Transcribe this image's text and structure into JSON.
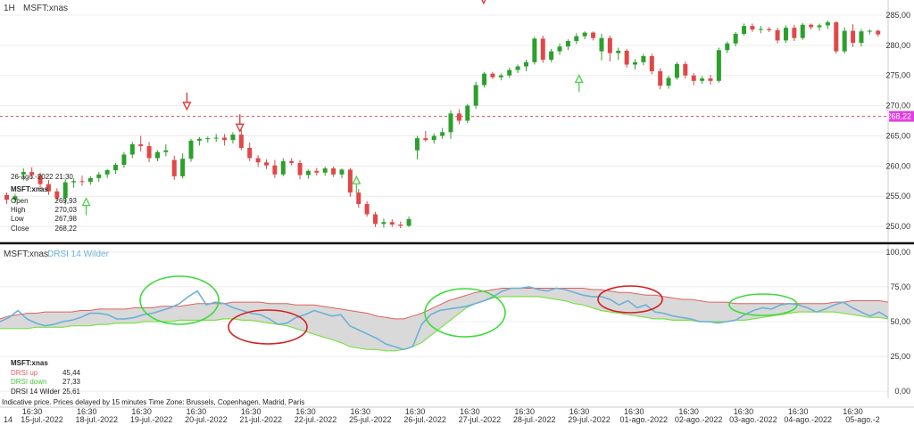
{
  "header": {
    "interval": "1H",
    "symbol": "MSFT:xnas"
  },
  "colors": {
    "up": "#2ca02c",
    "down": "#e04848",
    "drsi_line": "#6fb0d8",
    "drsi_up": "#e06060",
    "drsi_down": "#7ee04a",
    "band_fill": "#d9d9d9",
    "last_price_bg": "#e040e0",
    "signal_up": "#4ccf4c",
    "signal_down": "#e03030"
  },
  "price_panel": {
    "ylim": [
      247.5,
      287.5
    ],
    "ticks": [
      "285,00",
      "280,00",
      "275,00",
      "270,00",
      "265,00",
      "260,00",
      "255,00",
      "250,00"
    ],
    "tick_values": [
      285,
      280,
      275,
      270,
      265,
      260,
      255,
      250
    ],
    "last_price": 268.22,
    "last_price_label": "268,22"
  },
  "info_box": {
    "datetime": "26-ago.-2022 21:30",
    "symbol": "MSFT:xnas",
    "rows": [
      {
        "label": "Open",
        "value": "269,93"
      },
      {
        "label": "High",
        "value": "270,03"
      },
      {
        "label": "Low",
        "value": "267,98"
      },
      {
        "label": "Close",
        "value": "268,22"
      }
    ]
  },
  "indicator_panel": {
    "symbol": "MSFT:xnas",
    "indicator": "DRSI 14 Wilder",
    "ylim": [
      -5,
      105
    ],
    "ticks": [
      "100,00",
      "75,00",
      "50,00",
      "25,00",
      "0,00"
    ],
    "tick_values": [
      100,
      75,
      50,
      25,
      0
    ],
    "legend": {
      "symbol": "MSFT:xnas",
      "rows": [
        {
          "label": "DRSI up",
          "value": "45,44",
          "color_key": "drsi_up"
        },
        {
          "label": "DRSI down",
          "value": "27,33",
          "color_key": "drsi_down"
        },
        {
          "label": "DRSI 14 Wilder",
          "value": "25,61",
          "color_key": "text"
        }
      ]
    }
  },
  "footer_note": "Indicative price. Prices delayed by 15 minutes   Time Zone: Brussels, Copenhagen, Madrid, Paris",
  "x_axis": {
    "time_labels": [
      "16:30",
      "16:30",
      "16:30",
      "16:30",
      "16:30",
      "16:30",
      "16:30",
      "16:30",
      "16:30",
      "16:30",
      "16:30",
      "16:30",
      "16:30",
      "16:30",
      "16:30",
      "16:30"
    ],
    "date_labels": [
      "14",
      "15-jul.-2022",
      "18-jul.-2022",
      "19-jul.-2022",
      "20-jul.-2022",
      "21-jul.-2022",
      "22-jul.-2022",
      "25-jul.-2022",
      "26-jul.-2022",
      "27-jul.-2022",
      "28-jul.-2022",
      "29-jul.-2022",
      "01-ago.-2022",
      "02-ago.-2022",
      "03-ago.-2022",
      "04-ago.-2022",
      "05-ago.-2"
    ]
  },
  "chart_data": [
    {
      "type": "candlestick",
      "symbol": "MSFT:xnas",
      "interval": "1H",
      "ylim": [
        247.5,
        287.5
      ],
      "candles": [
        [
          255.2,
          255.6,
          253.7,
          254.4
        ],
        [
          254.4,
          255.4,
          253.9,
          255.0
        ],
        [
          258.6,
          259.6,
          257.6,
          259.0
        ],
        [
          259.0,
          259.8,
          257.8,
          258.5
        ],
        [
          258.5,
          258.9,
          256.2,
          257.0
        ],
        [
          257.0,
          257.7,
          255.2,
          255.8
        ],
        [
          255.8,
          256.3,
          254.2,
          254.7
        ],
        [
          254.7,
          257.8,
          253.6,
          257.3
        ],
        [
          257.3,
          258.0,
          256.4,
          257.5
        ],
        [
          257.5,
          258.4,
          256.7,
          257.4
        ],
        [
          257.4,
          258.3,
          256.9,
          258.0
        ],
        [
          258.0,
          259.0,
          257.4,
          258.6
        ],
        [
          258.6,
          259.5,
          258.0,
          259.3
        ],
        [
          259.3,
          260.5,
          258.7,
          260.2
        ],
        [
          260.2,
          262.3,
          259.7,
          261.9
        ],
        [
          261.9,
          264.0,
          261.3,
          263.6
        ],
        [
          263.6,
          265.0,
          262.4,
          263.3
        ],
        [
          263.3,
          264.0,
          260.6,
          261.3
        ],
        [
          261.3,
          262.6,
          260.8,
          262.3
        ],
        [
          262.3,
          263.6,
          261.6,
          262.6
        ],
        [
          261.0,
          261.7,
          257.7,
          258.3
        ],
        [
          258.3,
          262.1,
          257.9,
          261.2
        ],
        [
          261.2,
          264.5,
          260.7,
          264.2
        ],
        [
          264.2,
          264.8,
          263.4,
          264.5
        ],
        [
          264.5,
          264.9,
          263.9,
          264.6
        ],
        [
          264.6,
          265.3,
          264.0,
          264.7
        ],
        [
          264.7,
          265.3,
          263.4,
          264.3
        ],
        [
          264.3,
          265.6,
          263.7,
          265.2
        ],
        [
          265.2,
          266.0,
          262.6,
          263.0
        ],
        [
          263.0,
          263.9,
          260.8,
          261.3
        ],
        [
          261.3,
          261.8,
          259.9,
          260.6
        ],
        [
          260.6,
          261.1,
          259.5,
          260.1
        ],
        [
          260.1,
          261.0,
          258.0,
          258.6
        ],
        [
          258.6,
          261.3,
          258.3,
          260.8
        ],
        [
          260.8,
          261.3,
          260.1,
          260.5
        ],
        [
          260.5,
          261.0,
          257.8,
          258.5
        ],
        [
          258.5,
          259.4,
          257.9,
          259.2
        ],
        [
          259.2,
          259.7,
          258.4,
          258.9
        ],
        [
          258.9,
          259.9,
          258.4,
          259.6
        ],
        [
          259.6,
          259.9,
          258.2,
          258.6
        ],
        [
          258.6,
          259.6,
          258.0,
          259.4
        ],
        [
          259.4,
          259.7,
          254.9,
          255.6
        ],
        [
          255.6,
          256.2,
          253.1,
          253.7
        ],
        [
          253.7,
          254.2,
          251.6,
          252.0
        ],
        [
          252.0,
          252.4,
          249.9,
          250.4
        ],
        [
          250.4,
          251.3,
          249.8,
          250.7
        ],
        [
          250.7,
          251.2,
          249.9,
          250.3
        ],
        [
          250.3,
          250.8,
          249.7,
          250.1
        ],
        [
          250.1,
          251.6,
          249.9,
          251.2
        ],
        [
          262.6,
          265.0,
          261.1,
          264.6
        ],
        [
          264.6,
          265.8,
          264.0,
          264.3
        ],
        [
          264.3,
          265.4,
          263.7,
          265.0
        ],
        [
          265.0,
          266.3,
          264.5,
          265.6
        ],
        [
          265.6,
          269.2,
          264.5,
          268.7
        ],
        [
          268.7,
          269.4,
          266.9,
          267.5
        ],
        [
          267.5,
          270.3,
          267.1,
          270.0
        ],
        [
          270.0,
          273.9,
          269.5,
          273.4
        ],
        [
          273.4,
          275.6,
          273.0,
          275.3
        ],
        [
          275.3,
          275.6,
          274.4,
          274.7
        ],
        [
          274.7,
          275.3,
          274.2,
          275.0
        ],
        [
          275.0,
          276.3,
          274.6,
          275.9
        ],
        [
          275.9,
          276.8,
          275.4,
          276.5
        ],
        [
          276.5,
          277.6,
          275.7,
          277.2
        ],
        [
          277.2,
          281.4,
          276.8,
          281.1
        ],
        [
          281.1,
          281.6,
          277.1,
          277.6
        ],
        [
          277.6,
          279.4,
          277.2,
          279.0
        ],
        [
          279.0,
          280.3,
          278.4,
          279.8
        ],
        [
          279.8,
          281.0,
          279.2,
          280.7
        ],
        [
          280.7,
          282.0,
          280.2,
          281.5
        ],
        [
          281.5,
          282.3,
          281.0,
          282.1
        ],
        [
          282.1,
          282.3,
          280.8,
          281.2
        ],
        [
          279.0,
          281.9,
          277.5,
          281.2
        ],
        [
          281.2,
          281.6,
          277.3,
          278.7
        ],
        [
          278.7,
          279.6,
          277.6,
          279.1
        ],
        [
          279.1,
          279.4,
          276.3,
          276.8
        ],
        [
          276.8,
          277.7,
          276.0,
          277.2
        ],
        [
          277.2,
          278.6,
          276.7,
          278.2
        ],
        [
          278.2,
          278.6,
          275.2,
          275.7
        ],
        [
          275.7,
          276.2,
          272.7,
          273.3
        ],
        [
          273.3,
          275.0,
          272.8,
          274.6
        ],
        [
          274.6,
          277.2,
          274.3,
          276.9
        ],
        [
          276.9,
          277.3,
          274.5,
          275.0
        ],
        [
          275.0,
          275.4,
          273.4,
          274.1
        ],
        [
          274.1,
          274.9,
          273.6,
          274.5
        ],
        [
          274.5,
          275.1,
          273.5,
          274.1
        ],
        [
          274.1,
          279.6,
          273.8,
          279.2
        ],
        [
          279.2,
          280.6,
          278.7,
          280.3
        ],
        [
          280.3,
          282.2,
          279.8,
          281.9
        ],
        [
          281.9,
          283.6,
          281.6,
          283.2
        ],
        [
          283.2,
          283.6,
          282.2,
          282.6
        ],
        [
          282.6,
          283.2,
          282.0,
          282.7
        ],
        [
          282.7,
          283.0,
          282.2,
          282.5
        ],
        [
          282.5,
          282.9,
          280.3,
          280.8
        ],
        [
          280.8,
          283.3,
          280.4,
          282.9
        ],
        [
          282.9,
          283.4,
          280.7,
          281.2
        ],
        [
          281.2,
          283.7,
          280.9,
          283.4
        ],
        [
          283.4,
          283.6,
          282.6,
          283.0
        ],
        [
          283.0,
          283.6,
          282.4,
          283.3
        ],
        [
          283.3,
          284.1,
          282.7,
          283.8
        ],
        [
          283.8,
          284.0,
          278.6,
          279.0
        ],
        [
          279.0,
          283.0,
          278.6,
          282.4
        ],
        [
          282.4,
          283.5,
          279.7,
          280.4
        ],
        [
          280.4,
          282.7,
          279.8,
          282.3
        ],
        [
          282.3,
          282.6,
          281.8,
          282.4
        ],
        [
          282.4,
          282.6,
          281.4,
          281.8
        ]
      ],
      "candle_fields": [
        "open",
        "high",
        "low",
        "close"
      ],
      "last_price": 268.22,
      "signals": [
        {
          "type": "buy",
          "index": 15,
          "price": 254.2
        },
        {
          "type": "sell",
          "index": 34,
          "price": 269.8
        },
        {
          "type": "sell",
          "index": 44,
          "price": 266.2
        },
        {
          "type": "buy",
          "index": 66,
          "price": 257.8
        },
        {
          "type": "sell",
          "index": 90,
          "price": 287.4
        },
        {
          "type": "buy",
          "index": 108,
          "price": 274.6
        }
      ]
    },
    {
      "type": "line",
      "indicator": "DRSI 14 Wilder",
      "ylim": [
        -5,
        105
      ],
      "series": [
        {
          "name": "DRSI 14 Wilder",
          "color_key": "drsi_line",
          "values": [
            50,
            53,
            58,
            52,
            49,
            47,
            48,
            50,
            51,
            53,
            56,
            56,
            55,
            52,
            52,
            53,
            55,
            56,
            58,
            60,
            63,
            68,
            72,
            62,
            64,
            63,
            60,
            58,
            56,
            55,
            52,
            48,
            49,
            53,
            55,
            58,
            56,
            54,
            55,
            47,
            44,
            41,
            38,
            34,
            32,
            30,
            32,
            48,
            55,
            58,
            59,
            60,
            61,
            63,
            65,
            68,
            72,
            74,
            74,
            75,
            73,
            72,
            74,
            73,
            71,
            69,
            68,
            68,
            66,
            62,
            65,
            60,
            62,
            57,
            56,
            54,
            53,
            52,
            50,
            50,
            49,
            50,
            51,
            55,
            58,
            60,
            59,
            62,
            63,
            62,
            60,
            57,
            59,
            62,
            64,
            60,
            57,
            54,
            57,
            53
          ]
        },
        {
          "name": "DRSI up",
          "color_key": "drsi_up",
          "values": [
            52,
            54,
            55,
            56,
            56,
            57,
            57,
            57,
            57,
            58,
            58,
            59,
            59,
            59,
            59,
            60,
            60,
            60,
            61,
            61,
            61,
            62,
            63,
            63,
            63,
            63,
            64,
            64,
            64,
            64,
            63,
            63,
            63,
            62,
            62,
            62,
            61,
            60,
            59,
            58,
            57,
            56,
            54,
            53,
            52,
            52,
            54,
            56,
            59,
            62,
            65,
            67,
            69,
            71,
            72,
            73,
            74,
            74,
            74,
            74,
            74,
            74,
            74,
            74,
            74,
            74,
            73,
            73,
            72,
            71,
            71,
            70,
            69,
            69,
            68,
            67,
            66,
            66,
            65,
            64,
            64,
            64,
            63,
            63,
            63,
            63,
            63,
            63,
            63,
            63,
            63,
            63,
            63,
            64,
            64,
            65,
            65,
            65,
            65,
            64
          ]
        },
        {
          "name": "DRSI down",
          "color_key": "drsi_down",
          "values": [
            45,
            45,
            45,
            45,
            46,
            46,
            46,
            46,
            47,
            47,
            47,
            48,
            48,
            49,
            49,
            49,
            50,
            50,
            50,
            50,
            51,
            51,
            51,
            51,
            51,
            52,
            52,
            51,
            51,
            50,
            49,
            48,
            47,
            45,
            43,
            41,
            39,
            37,
            35,
            32,
            31,
            30,
            30,
            29,
            29,
            30,
            32,
            35,
            40,
            45,
            50,
            55,
            60,
            63,
            65,
            67,
            68,
            68,
            68,
            68,
            68,
            67,
            66,
            65,
            63,
            62,
            60,
            58,
            57,
            56,
            55,
            54,
            53,
            52,
            52,
            51,
            51,
            51,
            50,
            50,
            50,
            50,
            51,
            51,
            52,
            53,
            54,
            55,
            56,
            57,
            57,
            57,
            57,
            57,
            56,
            55,
            54,
            53,
            53,
            52
          ]
        }
      ],
      "annotations": [
        {
          "shape": "ellipse",
          "color": "green",
          "x_index": 31,
          "y": 68
        },
        {
          "shape": "ellipse",
          "color": "red",
          "x_index": 48,
          "y": 54
        },
        {
          "shape": "ellipse",
          "color": "green",
          "x_index": 96,
          "y": 63
        },
        {
          "shape": "ellipse",
          "color": "red",
          "x_index": 127,
          "y": 70
        },
        {
          "shape": "ellipse",
          "color": "green",
          "x_index": 151,
          "y": 62
        }
      ]
    }
  ]
}
